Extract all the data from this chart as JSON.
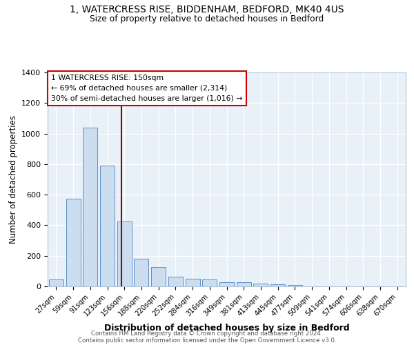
{
  "title1": "1, WATERCRESS RISE, BIDDENHAM, BEDFORD, MK40 4US",
  "title2": "Size of property relative to detached houses in Bedford",
  "xlabel": "Distribution of detached houses by size in Bedford",
  "ylabel": "Number of detached properties",
  "categories": [
    "27sqm",
    "59sqm",
    "91sqm",
    "123sqm",
    "156sqm",
    "188sqm",
    "220sqm",
    "252sqm",
    "284sqm",
    "316sqm",
    "349sqm",
    "381sqm",
    "413sqm",
    "445sqm",
    "477sqm",
    "509sqm",
    "541sqm",
    "574sqm",
    "606sqm",
    "638sqm",
    "670sqm"
  ],
  "values": [
    45,
    572,
    1040,
    790,
    425,
    182,
    125,
    65,
    50,
    45,
    28,
    25,
    20,
    12,
    10,
    0,
    0,
    0,
    0,
    0,
    0
  ],
  "bar_color": "#ccddf0",
  "bar_edge_color": "#5b8fc9",
  "background_color": "#e8f0f8",
  "grid_color": "#ffffff",
  "annotation_line_color": "#990000",
  "annotation_box_text": "1 WATERCRESS RISE: 150sqm\n← 69% of detached houses are smaller (2,314)\n30% of semi-detached houses are larger (1,016) →",
  "annotation_box_color": "#ffffff",
  "annotation_box_edge_color": "#cc0000",
  "footnote_line1": "Contains HM Land Registry data © Crown copyright and database right 2024.",
  "footnote_line2": "Contains public sector information licensed under the Open Government Licence v3.0.",
  "ylim": [
    0,
    1400
  ],
  "yticks": [
    0,
    200,
    400,
    600,
    800,
    1000,
    1200,
    1400
  ],
  "line_index": 3.818
}
